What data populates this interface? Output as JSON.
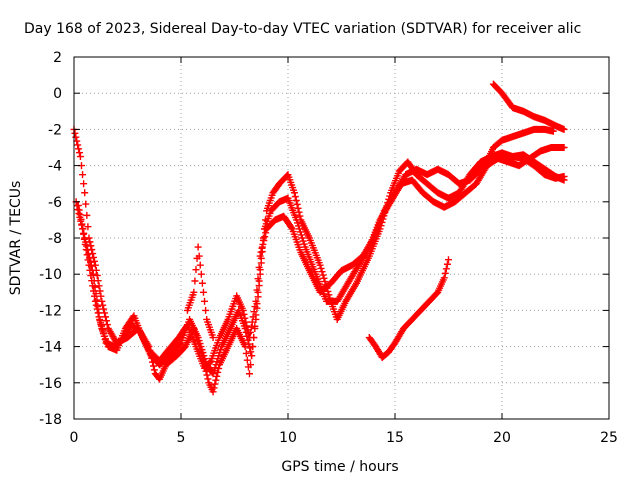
{
  "chart_data": {
    "type": "scatter",
    "title": "Day 168 of 2023, Sidereal Day-to-day VTEC variation (SDTVAR) for receiver alic",
    "xlabel": "GPS time / hours",
    "ylabel": "SDTVAR / TECUs",
    "xlim": [
      0,
      25
    ],
    "ylim": [
      -18,
      2
    ],
    "xticks": [
      0,
      5,
      10,
      15,
      20,
      25
    ],
    "yticks": [
      -18,
      -16,
      -14,
      -12,
      -10,
      -8,
      -6,
      -4,
      -2,
      0,
      2
    ],
    "grid": true,
    "legend": "none",
    "marker": "+",
    "color": "#ff0000",
    "series": [
      {
        "points": [
          [
            0.0,
            -2.0
          ],
          [
            0.3,
            -3.5
          ],
          [
            0.5,
            -5.5
          ],
          [
            0.7,
            -8.0
          ],
          [
            1.0,
            -9.5
          ],
          [
            1.3,
            -11.5
          ],
          [
            1.6,
            -13.0
          ],
          [
            2.0,
            -13.8
          ],
          [
            2.5,
            -13.5
          ],
          [
            3.0,
            -13.0
          ],
          [
            3.5,
            -14.0
          ],
          [
            3.8,
            -15.5
          ],
          [
            4.0,
            -15.8
          ],
          [
            4.3,
            -15.0
          ],
          [
            4.8,
            -14.5
          ],
          [
            5.2,
            -14.0
          ],
          [
            5.6,
            -13.0
          ],
          [
            6.0,
            -14.5
          ],
          [
            6.3,
            -16.0
          ],
          [
            6.5,
            -16.5
          ],
          [
            6.8,
            -15.0
          ],
          [
            7.2,
            -14.0
          ],
          [
            7.6,
            -13.0
          ],
          [
            8.0,
            -14.0
          ],
          [
            8.2,
            -15.5
          ],
          [
            8.4,
            -13.5
          ],
          [
            8.6,
            -11.0
          ],
          [
            8.8,
            -8.5
          ],
          [
            9.0,
            -6.5
          ],
          [
            9.3,
            -5.5
          ],
          [
            9.6,
            -5.0
          ],
          [
            10.0,
            -4.5
          ],
          [
            10.3,
            -5.5
          ],
          [
            10.6,
            -7.0
          ],
          [
            11.0,
            -8.0
          ],
          [
            11.5,
            -9.5
          ],
          [
            12.0,
            -11.5
          ],
          [
            12.3,
            -12.5
          ],
          [
            12.7,
            -11.5
          ],
          [
            13.2,
            -10.5
          ],
          [
            13.8,
            -9.0
          ],
          [
            14.3,
            -7.5
          ],
          [
            14.8,
            -5.5
          ],
          [
            15.2,
            -4.3
          ],
          [
            15.6,
            -3.8
          ],
          [
            16.0,
            -4.5
          ],
          [
            16.5,
            -5.0
          ],
          [
            17.0,
            -5.5
          ],
          [
            17.5,
            -5.8
          ],
          [
            18.0,
            -5.5
          ],
          [
            18.5,
            -4.5
          ],
          [
            19.0,
            -3.8
          ],
          [
            19.5,
            -3.5
          ],
          [
            20.0,
            -3.3
          ],
          [
            20.5,
            -3.5
          ],
          [
            21.0,
            -3.4
          ],
          [
            21.5,
            -3.8
          ],
          [
            22.0,
            -4.2
          ],
          [
            22.5,
            -4.6
          ],
          [
            22.9,
            -4.8
          ]
        ]
      },
      {
        "points": [
          [
            0.1,
            -6.0
          ],
          [
            0.4,
            -7.5
          ],
          [
            0.7,
            -9.5
          ],
          [
            1.0,
            -11.5
          ],
          [
            1.3,
            -13.0
          ],
          [
            1.6,
            -14.0
          ],
          [
            2.0,
            -14.2
          ],
          [
            2.4,
            -13.0
          ],
          [
            2.8,
            -12.3
          ],
          [
            3.2,
            -13.5
          ],
          [
            3.6,
            -14.5
          ],
          [
            4.0,
            -15.0
          ],
          [
            4.5,
            -14.5
          ],
          [
            5.0,
            -13.8
          ],
          [
            5.4,
            -12.5
          ],
          [
            5.8,
            -13.5
          ],
          [
            6.2,
            -15.0
          ],
          [
            6.5,
            -15.5
          ],
          [
            6.9,
            -14.0
          ],
          [
            7.3,
            -13.0
          ],
          [
            7.7,
            -12.0
          ],
          [
            8.0,
            -13.0
          ],
          [
            8.3,
            -14.5
          ],
          [
            8.5,
            -12.5
          ],
          [
            8.7,
            -10.0
          ],
          [
            8.9,
            -7.5
          ],
          [
            9.2,
            -6.5
          ],
          [
            9.6,
            -6.0
          ],
          [
            10.0,
            -5.8
          ],
          [
            10.4,
            -7.0
          ],
          [
            10.8,
            -8.5
          ],
          [
            11.3,
            -10.0
          ],
          [
            11.8,
            -11.5
          ],
          [
            12.3,
            -11.5
          ],
          [
            12.8,
            -10.5
          ],
          [
            13.3,
            -9.5
          ],
          [
            13.8,
            -8.5
          ],
          [
            14.3,
            -7.0
          ],
          [
            14.8,
            -6.0
          ],
          [
            15.3,
            -5.0
          ],
          [
            15.8,
            -4.8
          ],
          [
            16.3,
            -5.5
          ],
          [
            16.8,
            -6.0
          ],
          [
            17.3,
            -6.3
          ],
          [
            17.8,
            -6.0
          ],
          [
            18.3,
            -5.5
          ],
          [
            18.8,
            -5.0
          ],
          [
            19.3,
            -4.0
          ],
          [
            19.8,
            -3.6
          ],
          [
            20.3,
            -3.8
          ],
          [
            20.8,
            -4.0
          ],
          [
            21.3,
            -3.6
          ],
          [
            21.8,
            -3.2
          ],
          [
            22.3,
            -3.0
          ],
          [
            22.9,
            -3.0
          ]
        ]
      },
      {
        "points": [
          [
            0.2,
            -6.2
          ],
          [
            0.5,
            -8.0
          ],
          [
            0.9,
            -10.0
          ],
          [
            1.2,
            -12.5
          ],
          [
            1.5,
            -13.8
          ],
          [
            1.9,
            -14.0
          ],
          [
            2.3,
            -13.6
          ],
          [
            2.7,
            -12.8
          ],
          [
            3.1,
            -13.2
          ],
          [
            3.5,
            -14.2
          ],
          [
            4.0,
            -14.8
          ],
          [
            4.4,
            -14.2
          ],
          [
            4.9,
            -13.5
          ],
          [
            5.3,
            -12.8
          ],
          [
            5.7,
            -14.0
          ],
          [
            6.1,
            -15.2
          ],
          [
            6.4,
            -14.8
          ],
          [
            6.8,
            -13.5
          ],
          [
            7.2,
            -12.5
          ],
          [
            7.6,
            -11.2
          ],
          [
            7.9,
            -12.0
          ],
          [
            8.2,
            -13.5
          ],
          [
            8.5,
            -11.5
          ],
          [
            8.7,
            -9.0
          ],
          [
            9.0,
            -7.5
          ],
          [
            9.4,
            -7.0
          ],
          [
            9.8,
            -6.8
          ],
          [
            10.2,
            -7.5
          ],
          [
            10.6,
            -8.8
          ],
          [
            11.0,
            -9.8
          ],
          [
            11.5,
            -11.0
          ],
          [
            12.0,
            -10.5
          ],
          [
            12.5,
            -9.8
          ],
          [
            13.0,
            -9.5
          ],
          [
            13.5,
            -9.0
          ],
          [
            14.0,
            -8.0
          ],
          [
            14.5,
            -6.5
          ],
          [
            15.0,
            -5.5
          ],
          [
            15.5,
            -4.5
          ],
          [
            16.0,
            -4.2
          ],
          [
            16.5,
            -4.5
          ],
          [
            17.0,
            -4.2
          ],
          [
            17.5,
            -4.5
          ],
          [
            18.0,
            -5.0
          ],
          [
            18.5,
            -4.8
          ],
          [
            19.0,
            -4.2
          ],
          [
            19.5,
            -3.8
          ],
          [
            20.0,
            -3.5
          ],
          [
            20.5,
            -3.5
          ],
          [
            21.0,
            -3.6
          ],
          [
            21.5,
            -4.0
          ],
          [
            22.0,
            -4.5
          ],
          [
            22.5,
            -4.7
          ],
          [
            22.9,
            -4.6
          ]
        ]
      },
      {
        "points": [
          [
            19.6,
            0.5
          ],
          [
            20.0,
            0.0
          ],
          [
            20.5,
            -0.8
          ],
          [
            21.0,
            -1.0
          ],
          [
            21.5,
            -1.3
          ],
          [
            22.0,
            -1.5
          ],
          [
            22.5,
            -1.8
          ],
          [
            22.9,
            -2.0
          ]
        ]
      },
      {
        "points": [
          [
            19.2,
            -4.0
          ],
          [
            19.6,
            -3.0
          ],
          [
            20.0,
            -2.6
          ],
          [
            20.5,
            -2.4
          ],
          [
            21.0,
            -2.2
          ],
          [
            21.5,
            -2.0
          ],
          [
            22.0,
            -2.0
          ],
          [
            22.4,
            -2.1
          ]
        ]
      },
      {
        "points": [
          [
            13.8,
            -13.5
          ],
          [
            14.1,
            -14.0
          ],
          [
            14.4,
            -14.6
          ],
          [
            14.7,
            -14.3
          ],
          [
            15.0,
            -13.8
          ],
          [
            15.4,
            -13.0
          ],
          [
            15.8,
            -12.5
          ],
          [
            16.2,
            -12.0
          ],
          [
            16.6,
            -11.5
          ],
          [
            17.0,
            -11.0
          ],
          [
            17.3,
            -10.2
          ],
          [
            17.5,
            -9.2
          ]
        ]
      },
      {
        "points": [
          [
            5.3,
            -12.0
          ],
          [
            5.6,
            -11.0
          ],
          [
            5.8,
            -8.5
          ],
          [
            6.0,
            -10.5
          ],
          [
            6.2,
            -12.5
          ],
          [
            6.5,
            -13.5
          ]
        ]
      }
    ]
  }
}
